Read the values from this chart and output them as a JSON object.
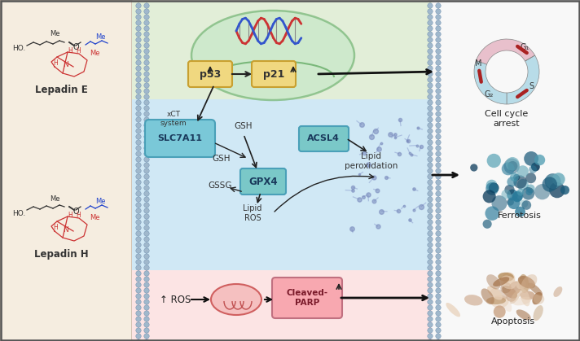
{
  "bg_outer": "#f5ede0",
  "bg_cell_top": "#e2eed8",
  "bg_cell_mid": "#d0e8f5",
  "bg_cell_bot": "#fce4e4",
  "slc7a11_color": "#7ac8d8",
  "gpx4_color": "#7ac8c8",
  "acsl4_color": "#7ac8c8",
  "p53_color": "#f0d880",
  "p21_color": "#f0d880",
  "cleaved_parp_color": "#f8a8b0",
  "lepadin_e_label": "Lepadin E",
  "lepadin_h_label": "Lepadin H",
  "cell_cycle_label": "Cell cycle\narrest",
  "ferrotosis_label": "Ferrotosis",
  "apoptosis_label": "Apoptosis",
  "blue_dark": "#1a3a5c",
  "black": "#222222"
}
